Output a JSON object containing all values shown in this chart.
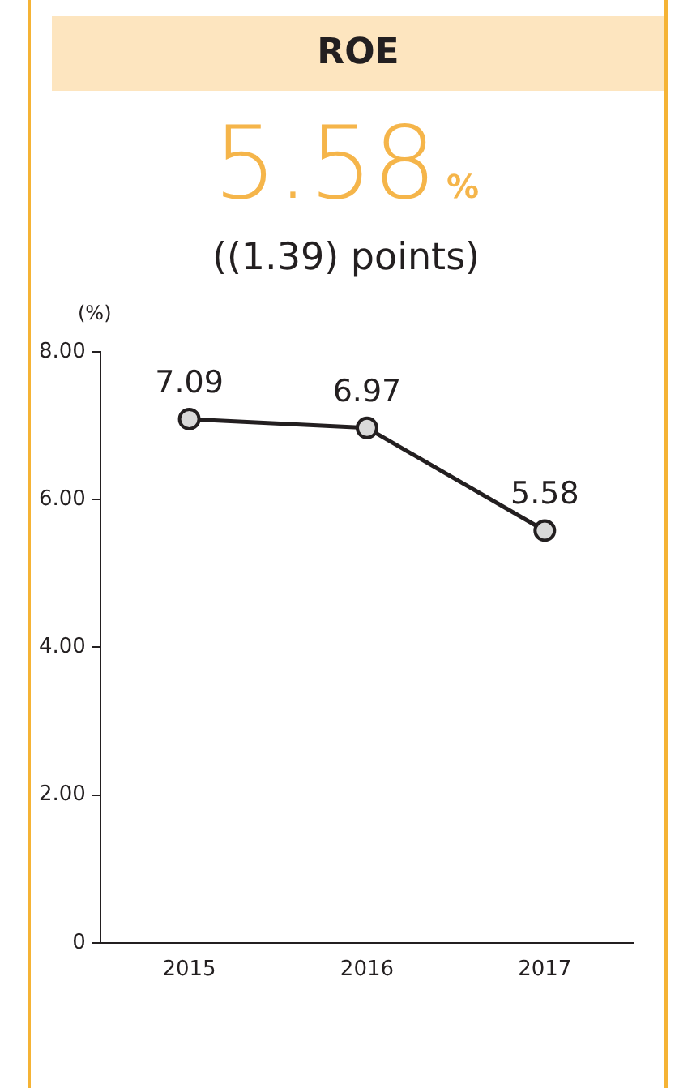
{
  "chart_data": {
    "type": "line",
    "title": "ROE",
    "annotations": [
      "5.58",
      "%",
      "((1.39) points)"
    ],
    "ylabel": "(%)",
    "categories": [
      "2015",
      "2016",
      "2017"
    ],
    "series": [
      {
        "color": "#231f20",
        "values": [
          7.09,
          6.97,
          5.58
        ]
      }
    ],
    "ylim": [
      0,
      8
    ],
    "yticks": [
      0,
      {
        "value": 2,
        "label": "2.00"
      },
      {
        "value": 4,
        "label": "4.00"
      },
      {
        "value": 6,
        "label": "6.00"
      },
      {
        "value": 8,
        "label": "8.00"
      }
    ],
    "grid": false,
    "legend": false,
    "marker": "circle",
    "line_style": "solid",
    "data_labels": true
  }
}
